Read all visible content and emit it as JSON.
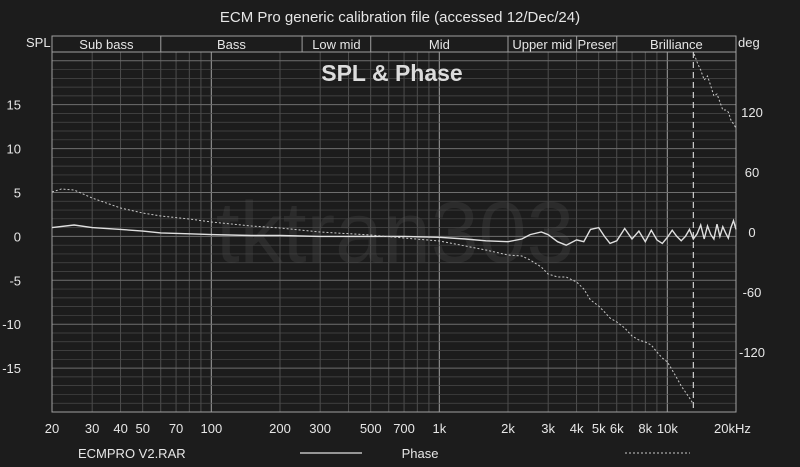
{
  "chart_data": {
    "type": "line",
    "title": "ECM Pro generic calibration file (accessed 12/Dec/24)",
    "inset_title": "SPL & Phase",
    "watermark": "tktran303",
    "y_left_label": "SPL",
    "y_right_label": "deg",
    "x_unit_label": "20kHz",
    "x_scale": "log",
    "xlim": [
      20,
      20000
    ],
    "ylim_left": [
      -20,
      21
    ],
    "ylim_right": [
      -180,
      180
    ],
    "grid": true,
    "x_ticks": [
      {
        "v": 20,
        "t": "20"
      },
      {
        "v": 30,
        "t": "30"
      },
      {
        "v": 40,
        "t": "40"
      },
      {
        "v": 50,
        "t": "50"
      },
      {
        "v": 70,
        "t": "70"
      },
      {
        "v": 100,
        "t": "100"
      },
      {
        "v": 200,
        "t": "200"
      },
      {
        "v": 300,
        "t": "300"
      },
      {
        "v": 500,
        "t": "500"
      },
      {
        "v": 700,
        "t": "700"
      },
      {
        "v": 1000,
        "t": "1k"
      },
      {
        "v": 2000,
        "t": "2k"
      },
      {
        "v": 3000,
        "t": "3k"
      },
      {
        "v": 4000,
        "t": "4k"
      },
      {
        "v": 5000,
        "t": "5k"
      },
      {
        "v": 6000,
        "t": "6k"
      },
      {
        "v": 8000,
        "t": "8k"
      },
      {
        "v": 10000,
        "t": "10k"
      }
    ],
    "y_left_ticks": [
      {
        "v": 15,
        "t": "15"
      },
      {
        "v": 10,
        "t": "10"
      },
      {
        "v": 5,
        "t": "5"
      },
      {
        "v": 0,
        "t": "0"
      },
      {
        "v": -5,
        "t": "-5"
      },
      {
        "v": -10,
        "t": "-10"
      },
      {
        "v": -15,
        "t": "-15"
      }
    ],
    "y_right_ticks": [
      {
        "v": 120,
        "t": "120"
      },
      {
        "v": 60,
        "t": "60"
      },
      {
        "v": 0,
        "t": "0"
      },
      {
        "v": -60,
        "t": "-60"
      },
      {
        "v": -120,
        "t": "-120"
      }
    ],
    "bands": [
      {
        "name": "Sub bass",
        "from": 20,
        "to": 60
      },
      {
        "name": "Bass",
        "from": 60,
        "to": 250
      },
      {
        "name": "Low mid",
        "from": 250,
        "to": 500
      },
      {
        "name": "Mid",
        "from": 500,
        "to": 2000
      },
      {
        "name": "Upper mid",
        "from": 2000,
        "to": 4000
      },
      {
        "name": "Presence",
        "label": "Preser",
        "from": 4000,
        "to": 6000
      },
      {
        "name": "Brilliance",
        "from": 6000,
        "to": 20000
      }
    ],
    "marker_x": 13000,
    "series": [
      {
        "name": "ECMPRO V2.RAR",
        "axis": "left",
        "style": "solid",
        "x": [
          20,
          25,
          30,
          40,
          50,
          60,
          80,
          100,
          150,
          200,
          300,
          500,
          700,
          1000,
          1300,
          1600,
          2000,
          2300,
          2500,
          2800,
          3000,
          3300,
          3600,
          4000,
          4300,
          4600,
          5000,
          5300,
          5600,
          6000,
          6500,
          7000,
          7500,
          8000,
          8500,
          9000,
          9500,
          10000,
          10500,
          11000,
          11500,
          12000,
          12500,
          13000,
          13500,
          14000,
          14500,
          15000,
          15500,
          16000,
          16500,
          17000,
          17500,
          18000,
          18500,
          19000,
          19500,
          20000
        ],
        "values": [
          1.0,
          1.3,
          1.0,
          0.8,
          0.6,
          0.4,
          0.3,
          0.2,
          0.1,
          0.1,
          0.0,
          0.0,
          0.0,
          -0.1,
          -0.3,
          -0.5,
          -0.6,
          -0.3,
          0.2,
          0.5,
          0.2,
          -0.6,
          -1.0,
          -0.4,
          -0.6,
          0.8,
          1.0,
          0.0,
          -0.8,
          -0.5,
          0.9,
          -0.3,
          0.6,
          -0.6,
          0.7,
          -0.4,
          -0.8,
          -0.1,
          0.7,
          0.0,
          -0.5,
          0.0,
          0.8,
          -0.3,
          0.3,
          1.3,
          -0.3,
          1.2,
          0.2,
          -0.3,
          1.4,
          0.0,
          1.1,
          0.4,
          -0.2,
          1.0,
          1.8,
          0.8
        ]
      },
      {
        "name": "Phase",
        "axis": "right",
        "style": "dashed",
        "x": [
          20,
          22,
          25,
          30,
          40,
          50,
          60,
          80,
          100,
          150,
          200,
          300,
          500,
          700,
          1000,
          1300,
          1600,
          2000,
          2300,
          2500,
          2800,
          3000,
          3300,
          3600,
          4000,
          4300,
          4600,
          5000,
          5300,
          5600,
          6000,
          6500,
          7000,
          7500,
          8000,
          8500,
          9000,
          9500,
          10000,
          10500,
          11000,
          11500,
          12000,
          12500,
          13000,
          13100,
          13600,
          14000,
          14500,
          15000,
          15500,
          16000,
          16500,
          17000,
          17500,
          18000,
          18500,
          19000,
          19500,
          20000
        ],
        "values": [
          40,
          43,
          42,
          34,
          24,
          19,
          16,
          13,
          10,
          6,
          4,
          0,
          -3,
          -6,
          -9,
          -14,
          -18,
          -23,
          -24,
          -28,
          -35,
          -42,
          -45,
          -45,
          -50,
          -57,
          -68,
          -74,
          -80,
          -86,
          -90,
          -96,
          -104,
          -108,
          -110,
          -113,
          -120,
          -126,
          -130,
          -138,
          -146,
          -154,
          -160,
          -166,
          -172,
          178,
          168,
          162,
          152,
          156,
          146,
          136,
          138,
          130,
          122,
          122,
          120,
          112,
          108,
          104
        ]
      }
    ],
    "legend": {
      "placement": "bottom",
      "entries": [
        "ECMPRO V2.RAR",
        "Phase"
      ]
    }
  },
  "colors": {
    "background": "#1c1c1c",
    "grid": "#595959",
    "grid_major": "#8a8a8a",
    "frame": "#a0a0a0",
    "text": "#e6e6e6",
    "spl_line": "#e0e0e0",
    "phase_line": "#c8c8c8",
    "watermark": "#2b2b2b"
  }
}
